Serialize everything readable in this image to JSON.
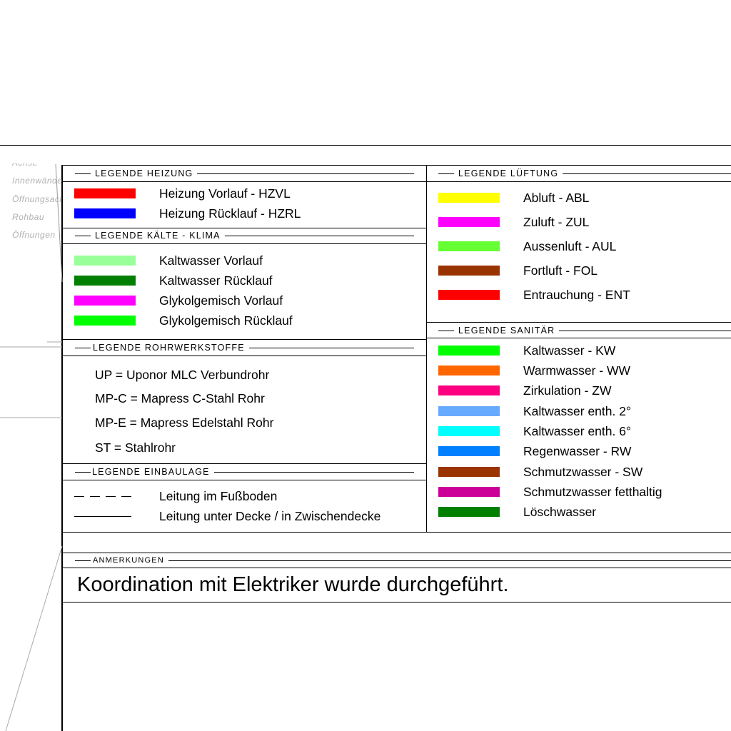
{
  "layers": [
    "Achse",
    "Innenwände",
    "Öffnungsachse",
    "Rohbau",
    "Öffnungen"
  ],
  "heizung": {
    "title": "LEGENDE HEIZUNG",
    "items": [
      {
        "label": "Heizung Vorlauf - HZVL",
        "color": "#ff0000"
      },
      {
        "label": "Heizung Rücklauf - HZRL",
        "color": "#0000ff"
      }
    ]
  },
  "kaelte": {
    "title": "LEGENDE KÄLTE - KLIMA",
    "items": [
      {
        "label": "Kaltwasser Vorlauf",
        "color": "#99ff99"
      },
      {
        "label": "Kaltwasser Rücklauf",
        "color": "#007f00"
      },
      {
        "label": "Glykolgemisch Vorlauf",
        "color": "#ff00ff"
      },
      {
        "label": "Glykolgemisch Rücklauf",
        "color": "#00ff00"
      }
    ]
  },
  "rohr": {
    "title": "LEGENDE ROHRWERKSTOFFE",
    "items": [
      "UP = Uponor MLC Verbundrohr",
      "MP-C = Mapress C-Stahl Rohr",
      "MP-E = Mapress Edelstahl Rohr",
      "ST = Stahlrohr"
    ]
  },
  "einbau": {
    "title": "LEGENDE EINBAULAGE",
    "items": [
      {
        "label": "Leitung im Fußboden",
        "line": "dashed"
      },
      {
        "label": "Leitung unter Decke / in Zwischendecke",
        "line": "solid"
      }
    ]
  },
  "lueftung": {
    "title": "LEGENDE LÜFTUNG",
    "items": [
      {
        "label": "Abluft - ABL",
        "color": "#ffff00"
      },
      {
        "label": "Zuluft - ZUL",
        "color": "#ff00ff"
      },
      {
        "label": "Aussenluft - AUL",
        "color": "#66ff33"
      },
      {
        "label": "Fortluft - FOL",
        "color": "#993300"
      },
      {
        "label": "Entrauchung - ENT",
        "color": "#ff0000"
      }
    ]
  },
  "sanitaer": {
    "title": "LEGENDE SANITÄR",
    "items": [
      {
        "label": "Kaltwasser - KW",
        "color": "#00ff00"
      },
      {
        "label": "Warmwasser - WW",
        "color": "#ff6600"
      },
      {
        "label": "Zirkulation - ZW",
        "color": "#ff0080"
      },
      {
        "label": "Kaltwasser enth. 2°",
        "color": "#66aaff"
      },
      {
        "label": "Kaltwasser enth. 6°",
        "color": "#00ffff"
      },
      {
        "label": "Regenwasser - RW",
        "color": "#0080ff"
      },
      {
        "label": "Schmutzwasser - SW",
        "color": "#993300"
      },
      {
        "label": "Schmutzwasser fetthaltig",
        "color": "#cc0099"
      },
      {
        "label": "Löschwasser",
        "color": "#007f00"
      }
    ]
  },
  "anmerkungen": {
    "title": "ANMERKUNGEN",
    "text": "Koordination mit Elektriker wurde durchgeführt."
  }
}
